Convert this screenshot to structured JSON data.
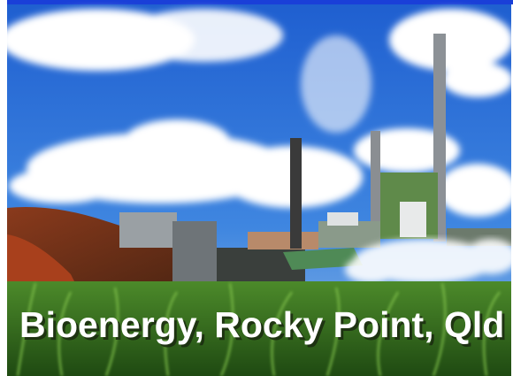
{
  "caption": "Bioenergy, Rocky Point, Qld"
}
